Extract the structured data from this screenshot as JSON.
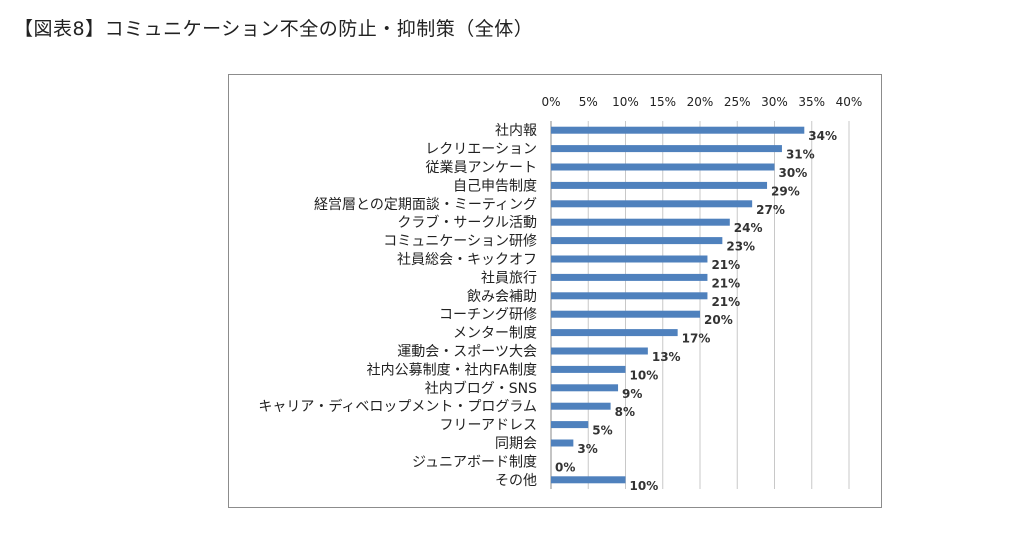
{
  "page": {
    "title": "【図表8】コミュニケーション不全の防止・抑制策（全体）"
  },
  "chart_data": {
    "type": "bar",
    "orientation": "horizontal",
    "title": "",
    "xlabel": "",
    "ylabel": "",
    "xlim": [
      0,
      40
    ],
    "x_ticks": [
      "0%",
      "5%",
      "10%",
      "15%",
      "20%",
      "25%",
      "30%",
      "35%",
      "40%"
    ],
    "x_axis_position": "top",
    "grid": true,
    "bar_color": "#4f81bd",
    "categories": [
      "社内報",
      "レクリエーション",
      "従業員アンケート",
      "自己申告制度",
      "経営層との定期面談・ミーティング",
      "クラブ・サークル活動",
      "コミュニケーション研修",
      "社員総会・キックオフ",
      "社員旅行",
      "飲み会補助",
      "コーチング研修",
      "メンター制度",
      "運動会・スポーツ大会",
      "社内公募制度・社内FA制度",
      "社内ブログ・SNS",
      "キャリア・ディベロップメント・プログラム",
      "フリーアドレス",
      "同期会",
      "ジュニアボード制度",
      "その他"
    ],
    "values": [
      34,
      31,
      30,
      29,
      27,
      24,
      23,
      21,
      21,
      21,
      20,
      17,
      13,
      10,
      9,
      8,
      5,
      3,
      0,
      10
    ],
    "value_labels": [
      "34%",
      "31%",
      "30%",
      "29%",
      "27%",
      "24%",
      "23%",
      "21%",
      "21%",
      "21%",
      "20%",
      "17%",
      "13%",
      "10%",
      "9%",
      "8%",
      "5%",
      "3%",
      "0%",
      "10%"
    ]
  }
}
